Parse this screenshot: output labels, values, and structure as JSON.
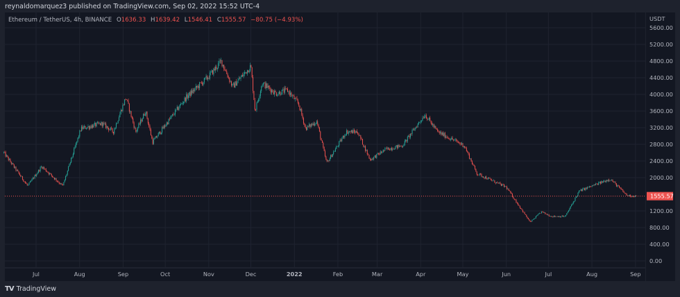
{
  "header": {
    "publisher": "reynaldomarquez3 published on TradingView.com, Sep 02, 2022 15:52 UTC-4"
  },
  "legend": {
    "symbol": "Ethereum / TetherUS, 4h, BINANCE",
    "open_label": "O",
    "open": "1636.33",
    "high_label": "H",
    "high": "1639.42",
    "low_label": "L",
    "low": "1546.41",
    "close_label": "C",
    "close": "1555.57",
    "change": "−80.75 (−4.93%)"
  },
  "footer": {
    "logo_mark": "TV",
    "logo_text": "TradingView"
  },
  "colors": {
    "up": "#26a69a",
    "down": "#ef5350",
    "background": "#131722",
    "price_line": "#ef5350"
  },
  "chart_data": {
    "type": "candlestick",
    "title": "Ethereum / TetherUS, 4h, BINANCE",
    "y_unit": "USDT",
    "ylim": [
      0,
      5600
    ],
    "y_ticks": [
      "5600.00",
      "5200.00",
      "4800.00",
      "4400.00",
      "4000.00",
      "3600.00",
      "3200.00",
      "2800.00",
      "2400.00",
      "2000.00",
      "1200.00",
      "800.00",
      "400.00",
      "0.00"
    ],
    "x_ticks": [
      {
        "label": "Jul",
        "date": "2021-07-01"
      },
      {
        "label": "Aug",
        "date": "2021-08-01"
      },
      {
        "label": "Sep",
        "date": "2021-09-01"
      },
      {
        "label": "Oct",
        "date": "2021-10-01"
      },
      {
        "label": "Nov",
        "date": "2021-11-01"
      },
      {
        "label": "Dec",
        "date": "2021-12-01"
      },
      {
        "label": "2022",
        "date": "2022-01-01"
      },
      {
        "label": "Feb",
        "date": "2022-02-01"
      },
      {
        "label": "Mar",
        "date": "2022-03-01"
      },
      {
        "label": "Apr",
        "date": "2022-04-01"
      },
      {
        "label": "May",
        "date": "2022-05-01"
      },
      {
        "label": "Jun",
        "date": "2022-06-01"
      },
      {
        "label": "Jul",
        "date": "2022-07-01"
      },
      {
        "label": "Aug",
        "date": "2022-08-01"
      },
      {
        "label": "Sep",
        "date": "2022-09-01"
      }
    ],
    "last_price": 1555.57,
    "last_price_label": "1555.57",
    "grid": true,
    "approx_close_path": [
      [
        "2021-06-08",
        2600
      ],
      [
        "2021-06-25",
        1800
      ],
      [
        "2021-07-05",
        2270
      ],
      [
        "2021-07-20",
        1800
      ],
      [
        "2021-08-02",
        3180
      ],
      [
        "2021-08-17",
        3300
      ],
      [
        "2021-08-25",
        3100
      ],
      [
        "2021-09-03",
        3930
      ],
      [
        "2021-09-10",
        3100
      ],
      [
        "2021-09-17",
        3600
      ],
      [
        "2021-09-22",
        2850
      ],
      [
        "2021-10-01",
        3260
      ],
      [
        "2021-10-16",
        3930
      ],
      [
        "2021-11-01",
        4430
      ],
      [
        "2021-11-10",
        4800
      ],
      [
        "2021-11-18",
        4180
      ],
      [
        "2021-12-01",
        4680
      ],
      [
        "2021-12-04",
        3600
      ],
      [
        "2021-12-09",
        4270
      ],
      [
        "2021-12-19",
        4020
      ],
      [
        "2021-12-27",
        4100
      ],
      [
        "2022-01-04",
        3770
      ],
      [
        "2022-01-09",
        3180
      ],
      [
        "2022-01-17",
        3350
      ],
      [
        "2022-01-24",
        2350
      ],
      [
        "2022-02-07",
        3100
      ],
      [
        "2022-02-15",
        3100
      ],
      [
        "2022-02-24",
        2430
      ],
      [
        "2022-03-07",
        2680
      ],
      [
        "2022-03-19",
        2770
      ],
      [
        "2022-04-04",
        3520
      ],
      [
        "2022-04-13",
        3100
      ],
      [
        "2022-05-02",
        2770
      ],
      [
        "2022-05-11",
        2100
      ],
      [
        "2022-06-01",
        1770
      ],
      [
        "2022-06-18",
        930
      ],
      [
        "2022-06-26",
        1180
      ],
      [
        "2022-07-03",
        1070
      ],
      [
        "2022-07-13",
        1070
      ],
      [
        "2022-07-23",
        1680
      ],
      [
        "2022-08-14",
        1970
      ],
      [
        "2022-08-26",
        1570
      ],
      [
        "2022-09-02",
        1555.57
      ]
    ]
  }
}
